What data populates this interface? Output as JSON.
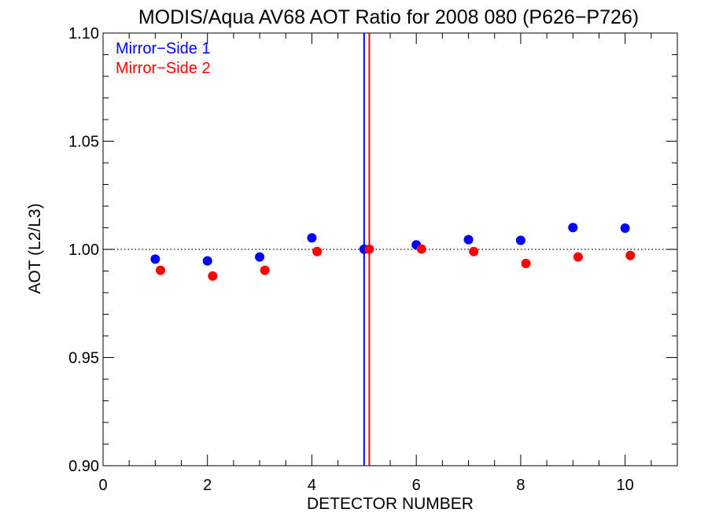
{
  "chart_data": {
    "type": "scatter",
    "title": "MODIS/Aqua AV68 AOT Ratio for 2008 080 (P626−P726)",
    "xlabel": "DETECTOR NUMBER",
    "ylabel": "AOT (L2/L3)",
    "xlim": [
      0,
      11
    ],
    "ylim": [
      0.9,
      1.1
    ],
    "x_ticks": [
      0,
      2,
      4,
      6,
      8,
      10
    ],
    "x_tick_labels": [
      "0",
      "2",
      "4",
      "6",
      "8",
      "10"
    ],
    "y_ticks": [
      0.9,
      0.95,
      1.0,
      1.05,
      1.1
    ],
    "y_tick_labels": [
      "0.90",
      "0.95",
      "1.00",
      "1.05",
      "1.10"
    ],
    "reference_line": {
      "y": 1.0,
      "style": "dotted"
    },
    "grid": false,
    "legend_position": "top-left",
    "series": [
      {
        "name": "Mirror−Side 1",
        "color": "#0000ff",
        "x": [
          1,
          2,
          3,
          4,
          5,
          6,
          7,
          8,
          9,
          10
        ],
        "y": [
          0.9955,
          0.9947,
          0.9965,
          1.0053,
          1.0001,
          1.0021,
          1.0045,
          1.0042,
          1.0101,
          1.0098
        ],
        "vertical_line_x": 5.0
      },
      {
        "name": "Mirror−Side 2",
        "color": "#ff0000",
        "x": [
          1.1,
          2.1,
          3.1,
          4.1,
          5.1,
          6.1,
          7.1,
          8.1,
          9.1,
          10.1
        ],
        "y": [
          0.9903,
          0.9877,
          0.9903,
          0.999,
          1.0001,
          1.0002,
          0.999,
          0.9935,
          0.9965,
          0.9972
        ],
        "vertical_line_x": 5.1
      }
    ]
  }
}
